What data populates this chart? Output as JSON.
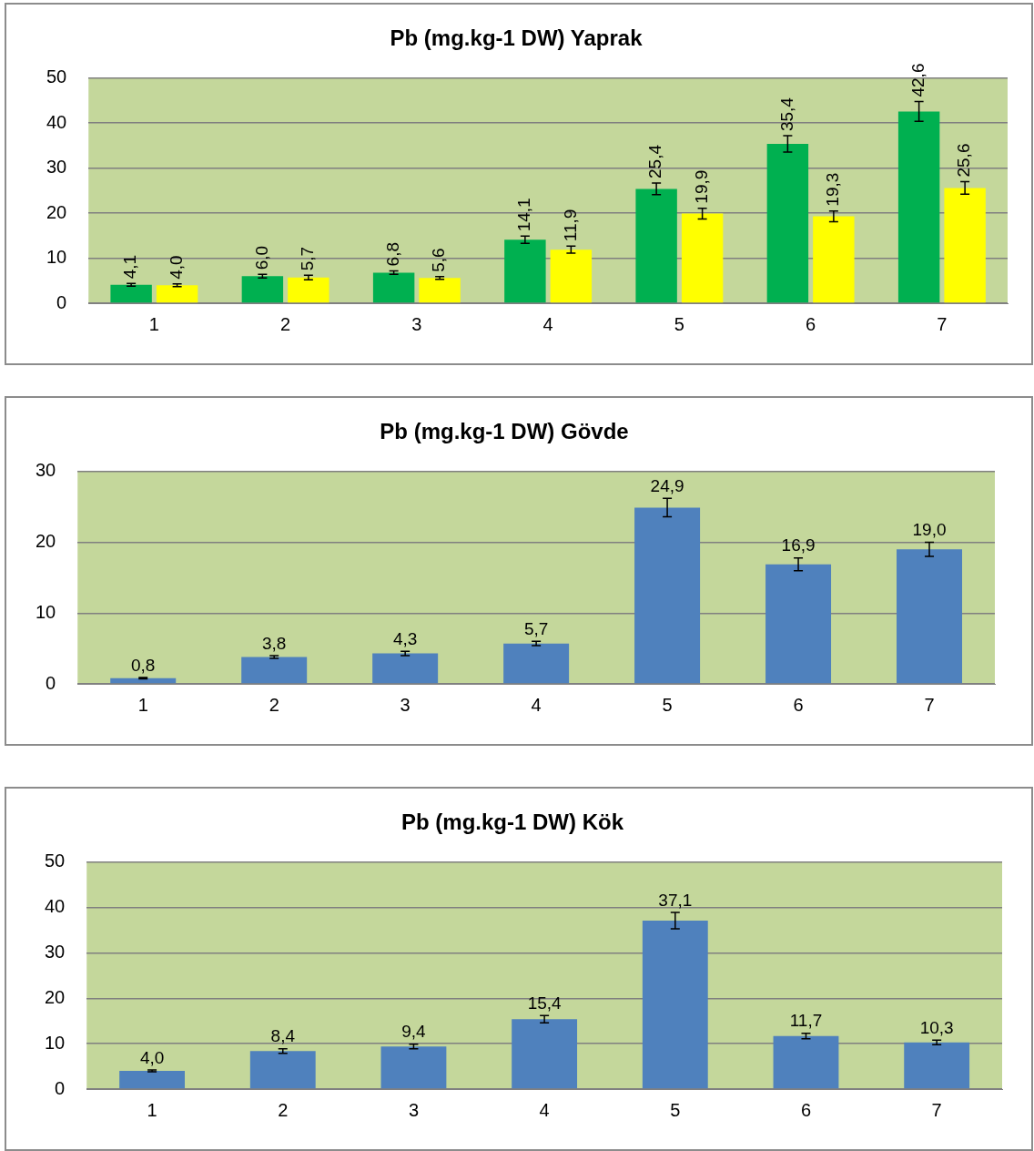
{
  "chart_data": [
    {
      "type": "bar",
      "title": "Pb (mg.kg-1 DW) Yaprak",
      "categories": [
        "1",
        "2",
        "3",
        "4",
        "5",
        "6",
        "7"
      ],
      "ylim": [
        0,
        50
      ],
      "yticks": [
        0,
        10,
        20,
        30,
        40,
        50
      ],
      "grid": "y",
      "series": [
        {
          "color": "#00b050",
          "values": [
            4.1,
            6.0,
            6.8,
            14.1,
            25.4,
            35.4,
            42.6
          ],
          "errors": [
            0.3,
            0.4,
            0.4,
            0.8,
            1.3,
            1.8,
            2.2
          ],
          "value_labels": [
            "4,1",
            "6,0",
            "6,8",
            "14,1",
            "25,4",
            "35,4",
            "42,6"
          ]
        },
        {
          "color": "#ffff00",
          "values": [
            4.0,
            5.7,
            5.6,
            11.9,
            19.9,
            19.3,
            25.6
          ],
          "errors": [
            0.3,
            0.5,
            0.3,
            0.8,
            1.2,
            1.2,
            1.4
          ],
          "value_labels": [
            "4,0",
            "5,7",
            "5,6",
            "11,9",
            "19,9",
            "19,3",
            "25,6"
          ]
        }
      ]
    },
    {
      "type": "bar",
      "title": "Pb (mg.kg-1 DW) Gövde",
      "categories": [
        "1",
        "2",
        "3",
        "4",
        "5",
        "6",
        "7"
      ],
      "ylim": [
        0,
        30
      ],
      "yticks": [
        0,
        10,
        20,
        30
      ],
      "grid": "y",
      "series": [
        {
          "color": "#4f81bd",
          "values": [
            0.8,
            3.8,
            4.3,
            5.7,
            24.9,
            16.9,
            19.0
          ],
          "errors": [
            0.1,
            0.2,
            0.3,
            0.3,
            1.3,
            0.9,
            1.0
          ],
          "value_labels": [
            "0,8",
            "3,8",
            "4,3",
            "5,7",
            "24,9",
            "16,9",
            "19,0"
          ]
        }
      ]
    },
    {
      "type": "bar",
      "title": "Pb (mg.kg-1 DW) Kök",
      "categories": [
        "1",
        "2",
        "3",
        "4",
        "5",
        "6",
        "7"
      ],
      "ylim": [
        0,
        50
      ],
      "yticks": [
        0,
        10,
        20,
        30,
        40,
        50
      ],
      "grid": "y",
      "series": [
        {
          "color": "#4f81bd",
          "values": [
            4.0,
            8.4,
            9.4,
            15.4,
            37.1,
            11.7,
            10.3
          ],
          "errors": [
            0.2,
            0.5,
            0.5,
            0.8,
            1.8,
            0.6,
            0.5
          ],
          "value_labels": [
            "4,0",
            "8,4",
            "9,4",
            "15,4",
            "37,1",
            "11,7",
            "10,3"
          ]
        }
      ]
    }
  ]
}
